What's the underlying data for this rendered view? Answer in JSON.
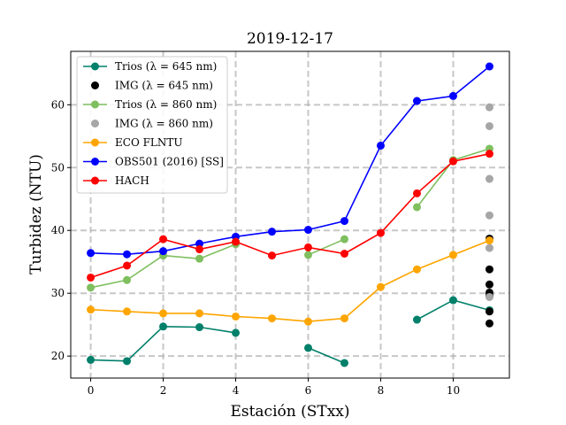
{
  "chart_data": {
    "type": "line",
    "title": "2019-12-17",
    "xlabel": "Estación (STxx)",
    "ylabel": "Turbidez (NTU)",
    "xlim": [
      -0.55,
      11.55
    ],
    "ylim": [
      16.5,
      68.5
    ],
    "xticks": [
      0,
      2,
      4,
      6,
      8,
      10
    ],
    "yticks": [
      20,
      30,
      40,
      50,
      60
    ],
    "grid": true,
    "grid_style": "dashed",
    "legend_position": "top-left",
    "series": [
      {
        "name": "Trios (λ = 645 nm)",
        "kind": "line",
        "color": "#00806a",
        "points": [
          [
            0,
            19.4
          ],
          [
            1,
            19.2
          ],
          [
            2,
            24.7
          ],
          [
            3,
            24.6
          ],
          [
            4,
            23.7
          ],
          [
            6,
            21.3
          ],
          [
            7,
            18.9
          ],
          [
            9,
            25.8
          ],
          [
            10,
            28.9
          ],
          [
            11,
            27.3
          ]
        ],
        "segments": [
          [
            0,
            4
          ],
          [
            5,
            6
          ],
          [
            7,
            9
          ]
        ]
      },
      {
        "name": "IMG (λ = 645 nm)",
        "kind": "scatter",
        "color": "#000000",
        "points": [
          [
            11,
            38.7
          ],
          [
            11,
            33.8
          ],
          [
            11,
            31.4
          ],
          [
            11,
            30.1
          ],
          [
            11,
            29.6
          ],
          [
            11,
            27.1
          ],
          [
            11,
            25.2
          ]
        ]
      },
      {
        "name": "Trios (λ = 860 nm)",
        "kind": "line",
        "color": "#7fbf5f",
        "points": [
          [
            0,
            30.9
          ],
          [
            1,
            32.1
          ],
          [
            2,
            36.0
          ],
          [
            3,
            35.5
          ],
          [
            4,
            37.8
          ],
          [
            6,
            36.1
          ],
          [
            7,
            38.6
          ],
          [
            9,
            43.7
          ],
          [
            10,
            51.2
          ],
          [
            11,
            53.0
          ]
        ],
        "segments": [
          [
            0,
            4
          ],
          [
            5,
            6
          ],
          [
            7,
            9
          ]
        ]
      },
      {
        "name": "IMG (λ = 860 nm)",
        "kind": "scatter",
        "color": "#a6a6a6",
        "points": [
          [
            11,
            59.6
          ],
          [
            11,
            56.6
          ],
          [
            11,
            48.2
          ],
          [
            11,
            42.4
          ],
          [
            11,
            37.2
          ],
          [
            11,
            29.4
          ]
        ]
      },
      {
        "name": "ECO FLNTU",
        "kind": "line",
        "color": "#ffa500",
        "points": [
          [
            0,
            27.4
          ],
          [
            1,
            27.1
          ],
          [
            2,
            26.8
          ],
          [
            3,
            26.8
          ],
          [
            4,
            26.3
          ],
          [
            5,
            26.0
          ],
          [
            6,
            25.5
          ],
          [
            7,
            26.0
          ],
          [
            8,
            31.0
          ],
          [
            9,
            33.8
          ],
          [
            10,
            36.1
          ],
          [
            11,
            38.4
          ]
        ],
        "segments": [
          [
            0,
            11
          ]
        ]
      },
      {
        "name": "OBS501 (2016) [SS]",
        "kind": "line",
        "color": "#0000ff",
        "points": [
          [
            0,
            36.4
          ],
          [
            1,
            36.2
          ],
          [
            2,
            36.7
          ],
          [
            3,
            37.9
          ],
          [
            4,
            39.0
          ],
          [
            5,
            39.8
          ],
          [
            6,
            40.1
          ],
          [
            7,
            41.5
          ],
          [
            8,
            53.5
          ],
          [
            9,
            60.6
          ],
          [
            10,
            61.4
          ],
          [
            11,
            66.1
          ]
        ],
        "segments": [
          [
            0,
            11
          ]
        ]
      },
      {
        "name": "HACH",
        "kind": "line",
        "color": "#ff0000",
        "points": [
          [
            0,
            32.5
          ],
          [
            1,
            34.4
          ],
          [
            2,
            38.6
          ],
          [
            3,
            37.0
          ],
          [
            4,
            38.2
          ],
          [
            5,
            36.0
          ],
          [
            6,
            37.3
          ],
          [
            7,
            36.3
          ],
          [
            8,
            39.6
          ],
          [
            9,
            45.9
          ],
          [
            10,
            51.0
          ],
          [
            11,
            52.2
          ]
        ],
        "segments": [
          [
            0,
            11
          ]
        ]
      }
    ]
  }
}
